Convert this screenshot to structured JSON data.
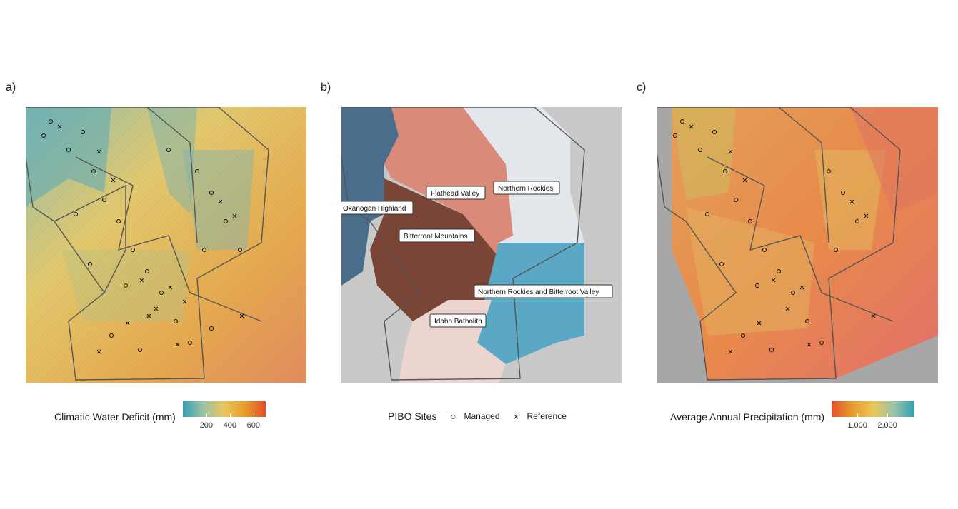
{
  "panels": {
    "a": {
      "label": "a)"
    },
    "b": {
      "label": "b)"
    },
    "c": {
      "label": "c)"
    }
  },
  "legend_a": {
    "title": "Climatic Water Deficit (mm)",
    "ticks": [
      "200",
      "400",
      "600"
    ],
    "colors": [
      "#2fa0b4",
      "#9cc4a4",
      "#ebc55a",
      "#e79b2b",
      "#e4502a"
    ]
  },
  "legend_b": {
    "title": "PIBO Sites",
    "managed_label": "Managed",
    "reference_label": "Reference"
  },
  "legend_c": {
    "title": "Average Annual Precipitation (mm)",
    "ticks": [
      "1,000",
      "2,000"
    ],
    "colors": [
      "#e4502a",
      "#e89a2d",
      "#ebc657",
      "#9cc4a6",
      "#2fa0b4"
    ]
  },
  "regions": {
    "okanogan": "Okanogan Highland",
    "flathead": "Flathead Valley",
    "northern_rockies": "Northern Rockies",
    "bitterroot_mountains": "Bitterroot Mountains",
    "nr_bitterroot_valley": "Northern Rockies and Bitterroot Valley",
    "idaho_batholith": "Idaho Batholith"
  },
  "region_colors": {
    "okanogan": "#4a6d8c",
    "flathead": "#d98a78",
    "northern_rockies": "#e3e6ea",
    "bitterroot_mountains": "#7a4437",
    "nr_bitterroot_valley": "#5aa8c6",
    "idaho_batholith": "#ecd4cf",
    "background": "#c9c9c9"
  }
}
